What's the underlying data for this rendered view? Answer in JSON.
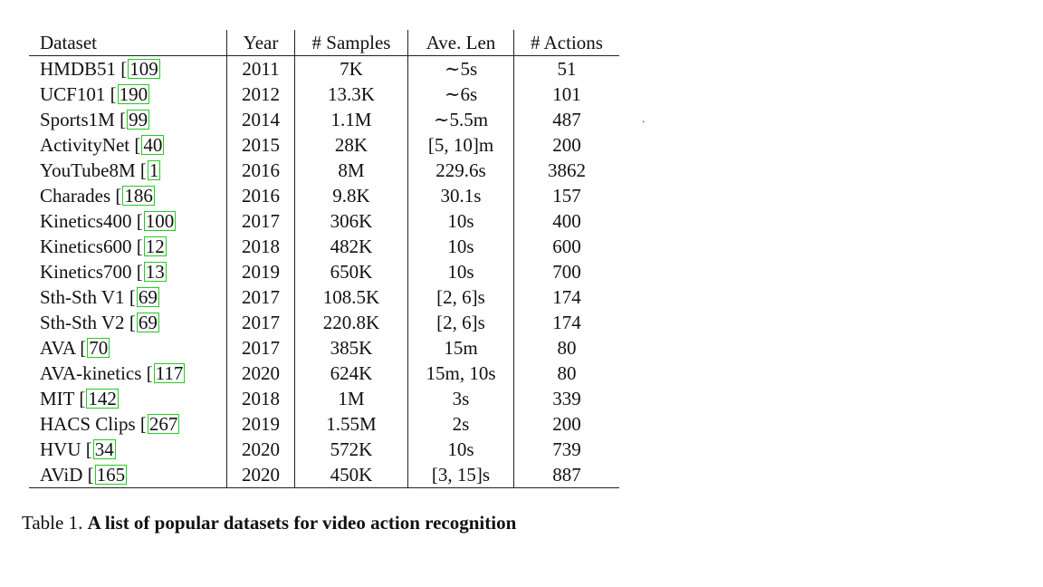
{
  "table": {
    "headers": [
      "Dataset",
      "Year",
      "# Samples",
      "Ave. Len",
      "# Actions"
    ],
    "rows": [
      {
        "name": "HMDB51",
        "cite": "109",
        "year": "2011",
        "samples": "7K",
        "len": "∼5s",
        "actions": "51"
      },
      {
        "name": "UCF101",
        "cite": "190",
        "year": "2012",
        "samples": "13.3K",
        "len": "∼6s",
        "actions": "101"
      },
      {
        "name": "Sports1M",
        "cite": "99",
        "year": "2014",
        "samples": "1.1M",
        "len": "∼5.5m",
        "actions": "487"
      },
      {
        "name": "ActivityNet",
        "cite": "40",
        "year": "2015",
        "samples": "28K",
        "len": "[5, 10]m",
        "actions": "200"
      },
      {
        "name": "YouTube8M",
        "cite": "1",
        "year": "2016",
        "samples": "8M",
        "len": "229.6s",
        "actions": "3862"
      },
      {
        "name": "Charades",
        "cite": "186",
        "year": "2016",
        "samples": "9.8K",
        "len": "30.1s",
        "actions": "157"
      },
      {
        "name": "Kinetics400",
        "cite": "100",
        "year": "2017",
        "samples": "306K",
        "len": "10s",
        "actions": "400"
      },
      {
        "name": "Kinetics600",
        "cite": "12",
        "year": "2018",
        "samples": "482K",
        "len": "10s",
        "actions": "600"
      },
      {
        "name": "Kinetics700",
        "cite": "13",
        "year": "2019",
        "samples": "650K",
        "len": "10s",
        "actions": "700"
      },
      {
        "name": "Sth-Sth V1",
        "cite": "69",
        "year": "2017",
        "samples": "108.5K",
        "len": "[2, 6]s",
        "actions": "174"
      },
      {
        "name": "Sth-Sth V2",
        "cite": "69",
        "year": "2017",
        "samples": "220.8K",
        "len": "[2, 6]s",
        "actions": "174"
      },
      {
        "name": "AVA",
        "cite": "70",
        "year": "2017",
        "samples": "385K",
        "len": "15m",
        "actions": "80"
      },
      {
        "name": "AVA-kinetics",
        "cite": "117",
        "year": "2020",
        "samples": "624K",
        "len": "15m, 10s",
        "actions": "80"
      },
      {
        "name": "MIT",
        "cite": "142",
        "year": "2018",
        "samples": "1M",
        "len": "3s",
        "actions": "339"
      },
      {
        "name": "HACS Clips",
        "cite": "267",
        "year": "2019",
        "samples": "1.55M",
        "len": "2s",
        "actions": "200"
      },
      {
        "name": "HVU",
        "cite": "34",
        "year": "2020",
        "samples": "572K",
        "len": "10s",
        "actions": "739"
      },
      {
        "name": "AViD",
        "cite": "165",
        "year": "2020",
        "samples": "450K",
        "len": "[3, 15]s",
        "actions": "887"
      }
    ]
  },
  "caption": {
    "prefix": "Table 1. ",
    "title": "A list of popular datasets for video action recognition"
  },
  "stray_mark": "."
}
